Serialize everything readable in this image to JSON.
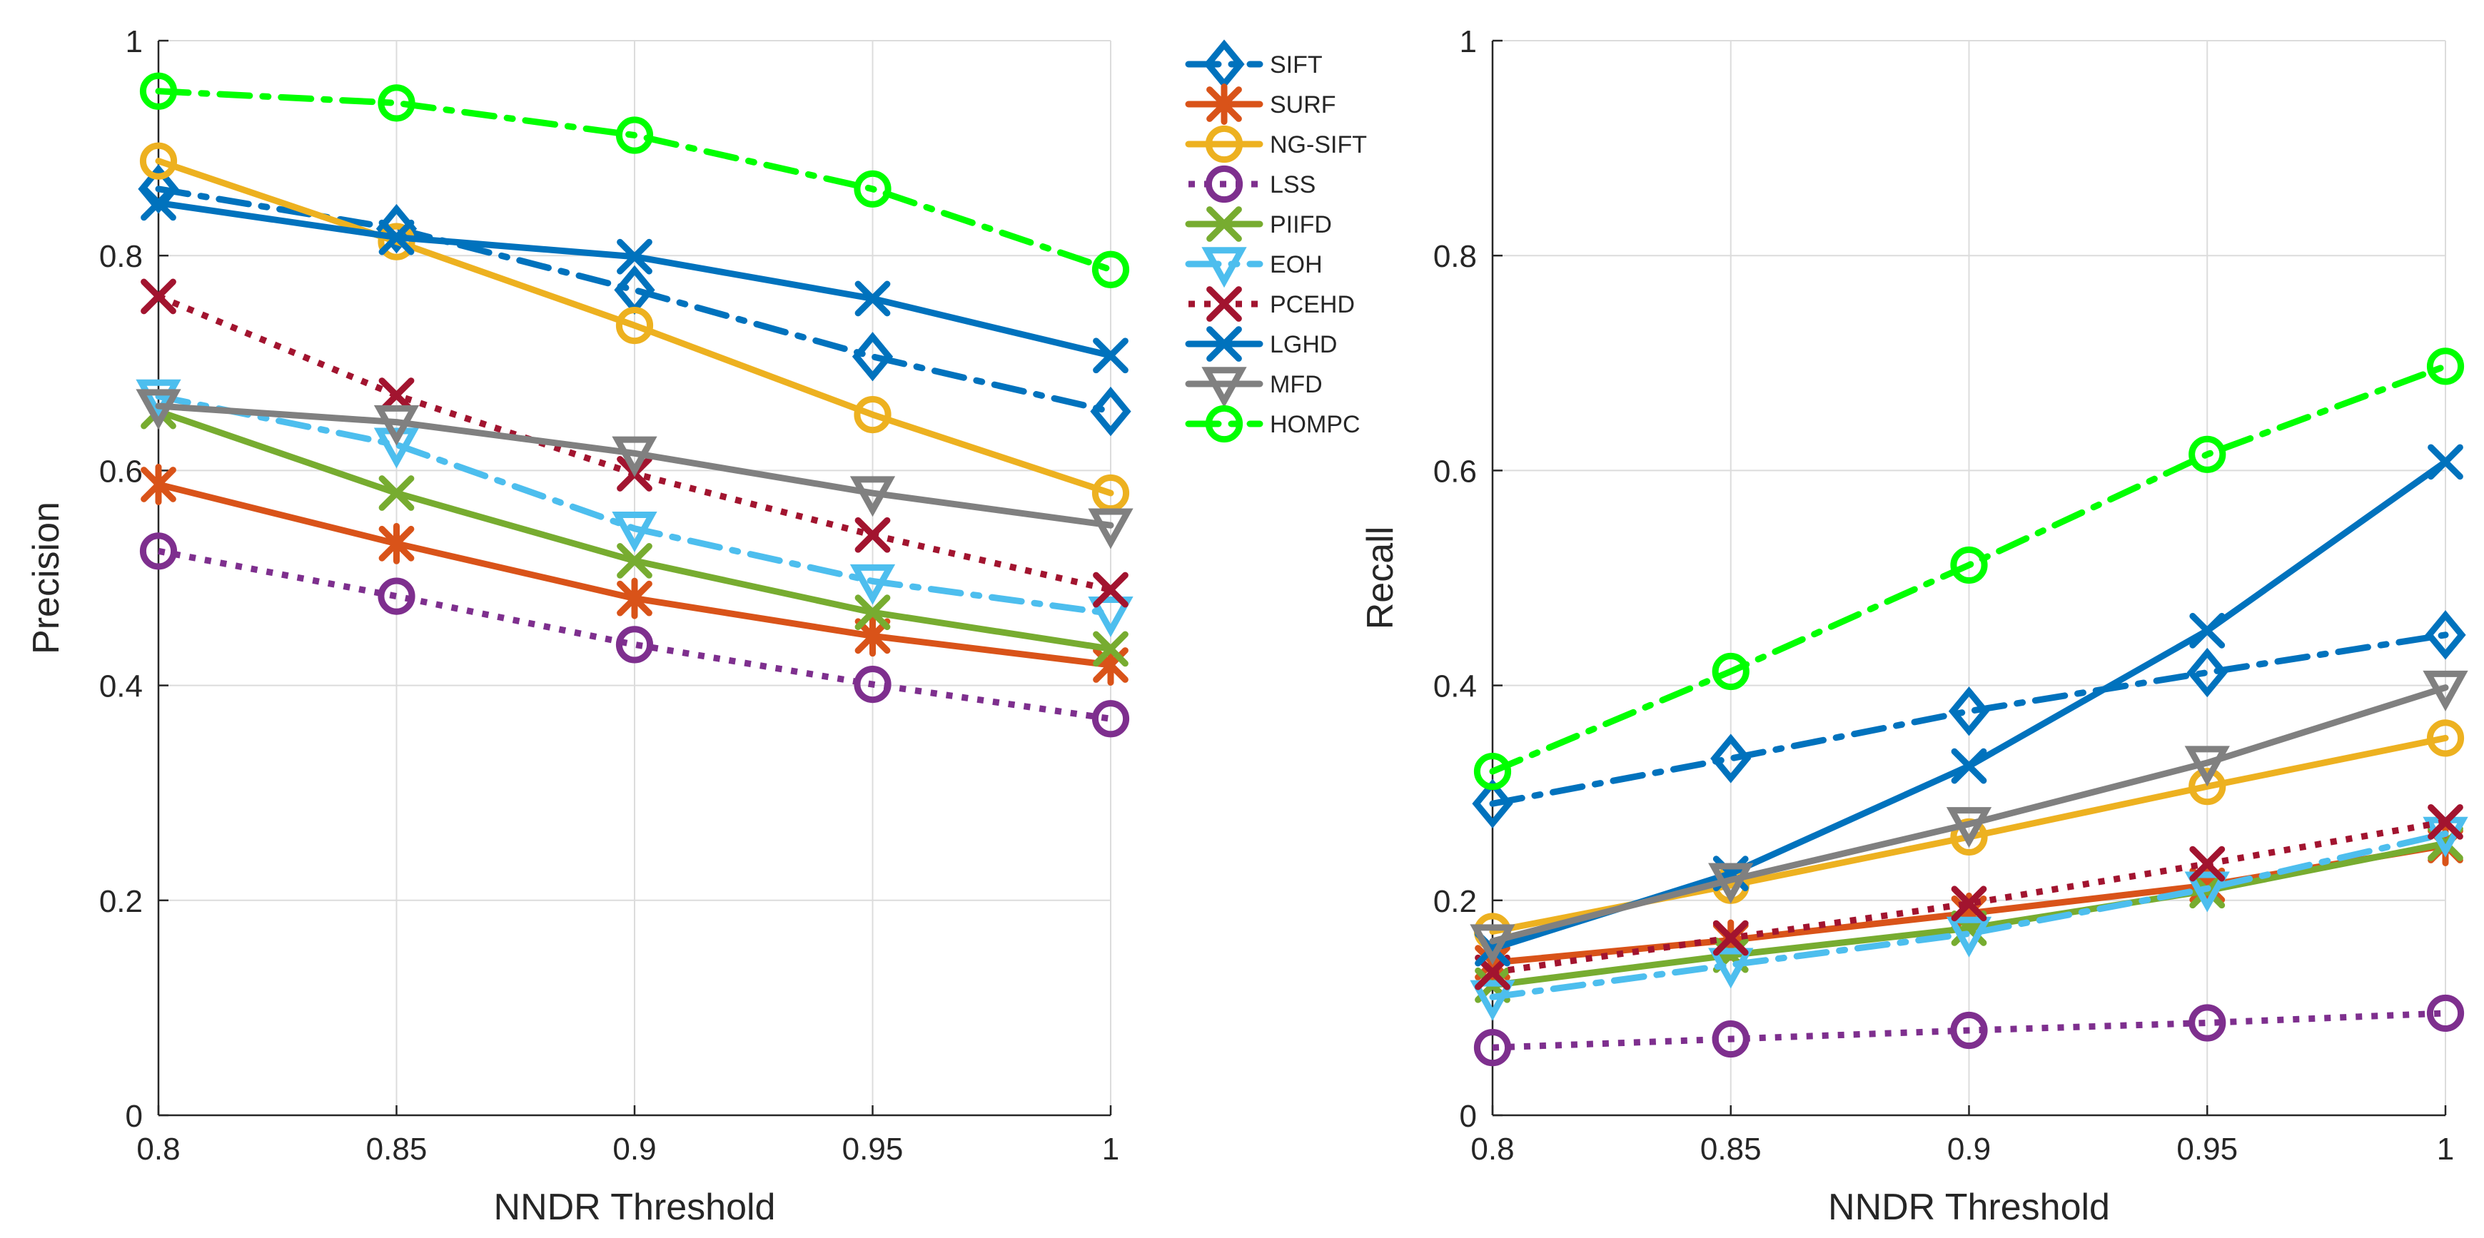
{
  "chart_data": [
    {
      "type": "line",
      "xlabel": "NNDR Threshold",
      "ylabel": "Precision",
      "x": [
        0.8,
        0.85,
        0.9,
        0.95,
        1
      ],
      "xticks": [
        "0.8",
        "0.85",
        "0.9",
        "0.95",
        "1"
      ],
      "yticks": [
        "0",
        "0.2",
        "0.4",
        "0.6",
        "0.8",
        "1"
      ],
      "xlim": [
        0.8,
        1
      ],
      "ylim": [
        0,
        1
      ],
      "grid": true,
      "series": [
        {
          "name": "SIFT",
          "values": [
            0.862,
            0.825,
            0.768,
            0.706,
            0.655
          ]
        },
        {
          "name": "SURF",
          "values": [
            0.587,
            0.532,
            0.481,
            0.446,
            0.419
          ]
        },
        {
          "name": "NG-SIFT",
          "values": [
            0.888,
            0.813,
            0.735,
            0.652,
            0.579
          ]
        },
        {
          "name": "LSS",
          "values": [
            0.525,
            0.483,
            0.438,
            0.401,
            0.369
          ]
        },
        {
          "name": "PIIFD",
          "values": [
            0.655,
            0.579,
            0.516,
            0.468,
            0.434
          ]
        },
        {
          "name": "EOH",
          "values": [
            0.669,
            0.624,
            0.546,
            0.497,
            0.467
          ]
        },
        {
          "name": "PCEHD",
          "values": [
            0.762,
            0.67,
            0.597,
            0.54,
            0.489
          ]
        },
        {
          "name": "LGHD",
          "values": [
            0.849,
            0.817,
            0.799,
            0.76,
            0.707
          ]
        },
        {
          "name": "MFD",
          "values": [
            0.66,
            0.645,
            0.616,
            0.579,
            0.549
          ]
        },
        {
          "name": "HOMPC",
          "values": [
            0.953,
            0.942,
            0.912,
            0.862,
            0.787
          ]
        }
      ]
    },
    {
      "type": "line",
      "xlabel": "NNDR Threshold",
      "ylabel": "Recall",
      "x": [
        0.8,
        0.85,
        0.9,
        0.95,
        1
      ],
      "xticks": [
        "0.8",
        "0.85",
        "0.9",
        "0.95",
        "1"
      ],
      "yticks": [
        "0",
        "0.2",
        "0.4",
        "0.6",
        "0.8",
        "1"
      ],
      "xlim": [
        0.8,
        1
      ],
      "ylim": [
        0,
        1
      ],
      "grid": true,
      "series": [
        {
          "name": "SIFT",
          "values": [
            0.29,
            0.332,
            0.376,
            0.412,
            0.447
          ]
        },
        {
          "name": "SURF",
          "values": [
            0.142,
            0.163,
            0.188,
            0.214,
            0.251
          ]
        },
        {
          "name": "NG-SIFT",
          "values": [
            0.171,
            0.214,
            0.259,
            0.306,
            0.351
          ]
        },
        {
          "name": "LSS",
          "values": [
            0.063,
            0.071,
            0.079,
            0.086,
            0.095
          ]
        },
        {
          "name": "PIIFD",
          "values": [
            0.121,
            0.149,
            0.174,
            0.209,
            0.253
          ]
        },
        {
          "name": "EOH",
          "values": [
            0.11,
            0.14,
            0.169,
            0.211,
            0.262
          ]
        },
        {
          "name": "PCEHD",
          "values": [
            0.133,
            0.165,
            0.197,
            0.234,
            0.273
          ]
        },
        {
          "name": "LGHD",
          "values": [
            0.155,
            0.225,
            0.325,
            0.451,
            0.608
          ]
        },
        {
          "name": "MFD",
          "values": [
            0.162,
            0.219,
            0.271,
            0.328,
            0.398
          ]
        },
        {
          "name": "HOMPC",
          "values": [
            0.32,
            0.413,
            0.512,
            0.615,
            0.697
          ]
        }
      ]
    }
  ],
  "legend": {
    "placement": "top-left of right panel (between panels)",
    "entries": [
      "SIFT",
      "SURF",
      "NG-SIFT",
      "LSS",
      "PIIFD",
      "EOH",
      "PCEHD",
      "LGHD",
      "MFD",
      "HOMPC"
    ]
  },
  "styles": {
    "SIFT": {
      "color": "#0072BD",
      "dash": "dashdot",
      "marker": "diamond"
    },
    "SURF": {
      "color": "#D95319",
      "dash": "solid",
      "marker": "asterisk"
    },
    "NG-SIFT": {
      "color": "#EDB120",
      "dash": "solid",
      "marker": "circle"
    },
    "LSS": {
      "color": "#7E2F8E",
      "dash": "dotted",
      "marker": "circle"
    },
    "PIIFD": {
      "color": "#77AC30",
      "dash": "solid",
      "marker": "x"
    },
    "EOH": {
      "color": "#4DBEEE",
      "dash": "dashdot",
      "marker": "triangle-down"
    },
    "PCEHD": {
      "color": "#A2142F",
      "dash": "dotted",
      "marker": "x"
    },
    "LGHD": {
      "color": "#0072BD",
      "dash": "solid",
      "marker": "x"
    },
    "MFD": {
      "color": "#808080",
      "dash": "solid",
      "marker": "triangle-down"
    },
    "HOMPC": {
      "color": "#00FF00",
      "dash": "dashdot",
      "marker": "circle"
    }
  }
}
